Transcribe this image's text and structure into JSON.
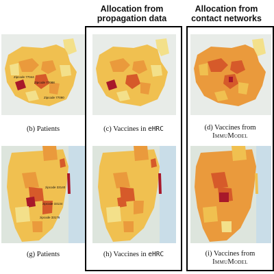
{
  "headers": {
    "propagation": "Allocation from propagation data",
    "contact": "Allocation from contact networks"
  },
  "captions": {
    "b": {
      "label": "(b) Patients"
    },
    "c": {
      "prefix": "(c) Vaccines in ",
      "mono": "eHRC"
    },
    "d": {
      "line1": "(d) Vaccines from",
      "line2": "ImmuModel"
    },
    "g": {
      "label": "(g) Patients"
    },
    "h": {
      "prefix": "(h) Vaccines in ",
      "mono": "eHRC"
    },
    "i": {
      "line1": "(i) Vaccines from",
      "line2": "ImmuModel"
    }
  },
  "annotations": {
    "top": [
      "Zipcode 77044",
      "Zipcode 77088",
      "Zipcode 77090"
    ],
    "bottom": [
      "zipcode 33140",
      "zipcode 33134",
      "zipcode 33176"
    ]
  },
  "colors": {
    "pale": "#f3e08a",
    "light": "#f0c050",
    "mid": "#ea9a3c",
    "dark": "#d65a2a",
    "deep": "#a8182a",
    "land": "#dde5dd",
    "water": "#c9dde8"
  }
}
